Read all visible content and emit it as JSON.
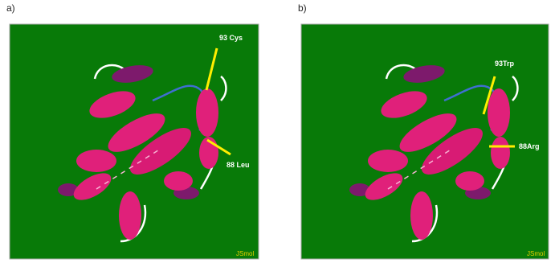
{
  "panels": [
    {
      "label": "a)",
      "annotations": [
        "93 Cys",
        "88 Leu"
      ],
      "watermark": "JSmol"
    },
    {
      "label": "b)",
      "annotations": [
        "93Trp",
        "88Arg"
      ],
      "watermark": "JSmol"
    }
  ]
}
